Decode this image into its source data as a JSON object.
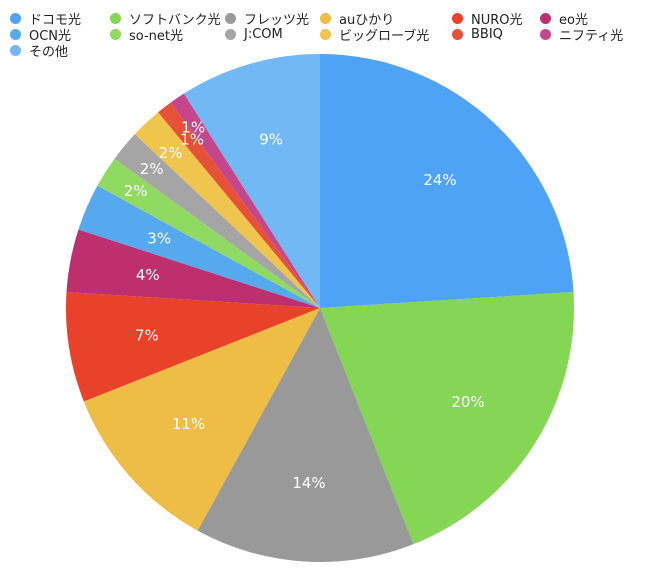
{
  "chart_data": {
    "type": "pie",
    "start_angle": "12 o'clock, clockwise",
    "legend_position": "top",
    "slices": [
      {
        "name": "ドコモ光",
        "value": 24,
        "label": "24%",
        "color": "#4fa3f7"
      },
      {
        "name": "ソフトバンク光",
        "value": 20,
        "label": "20%",
        "color": "#85d654"
      },
      {
        "name": "フレッツ光",
        "value": 14,
        "label": "14%",
        "color": "#999999"
      },
      {
        "name": "auひかり",
        "value": 11,
        "label": "11%",
        "color": "#edbd45"
      },
      {
        "name": "NURO光",
        "value": 7,
        "label": "7%",
        "color": "#e8432a"
      },
      {
        "name": "eo光",
        "value": 4,
        "label": "4%",
        "color": "#be2f6e"
      },
      {
        "name": "OCN光",
        "value": 3,
        "label": "3%",
        "color": "#57a9ee"
      },
      {
        "name": "so-net光",
        "value": 2,
        "label": "2%",
        "color": "#90da62"
      },
      {
        "name": "J:COM",
        "value": 2,
        "label": "2%",
        "color": "#a5a5a5"
      },
      {
        "name": "ビッグローブ光",
        "value": 2,
        "label": "2%",
        "color": "#f0c54e"
      },
      {
        "name": "BBIQ",
        "value": 1,
        "label": "1%",
        "color": "#e65138"
      },
      {
        "name": "ニフティ光",
        "value": 1,
        "label": "1%",
        "color": "#c5478b"
      },
      {
        "name": "その他",
        "value": 9,
        "label": "9%",
        "color": "#72b8f5"
      }
    ]
  }
}
